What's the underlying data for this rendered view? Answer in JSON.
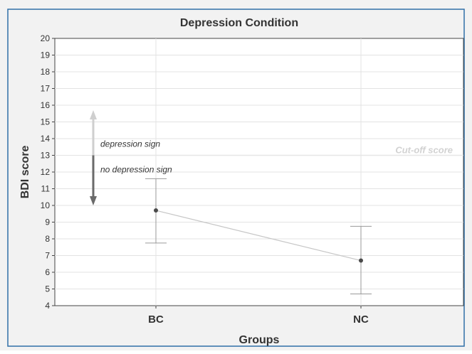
{
  "chart_data": {
    "type": "line",
    "title": "Depression Condition",
    "xlabel": "Groups",
    "ylabel": "BDI score",
    "ylim": [
      4,
      20
    ],
    "yticks": [
      4,
      5,
      6,
      7,
      8,
      9,
      10,
      11,
      12,
      13,
      14,
      15,
      16,
      17,
      18,
      19,
      20
    ],
    "categories": [
      "BC",
      "NC"
    ],
    "series": [
      {
        "values": [
          9.7,
          6.7
        ],
        "error_low": [
          7.75,
          4.7
        ],
        "error_high": [
          11.6,
          8.75
        ]
      }
    ],
    "grid": true,
    "reference_line": {
      "value": 13,
      "label": "Cut-off score"
    },
    "annotations": {
      "arrow_range": [
        10,
        15.7
      ],
      "above_label": "depression sign",
      "below_label": "no depression sign"
    }
  },
  "colors": {
    "background_outer": "#f2f2f2",
    "plot_background": "#ffffff",
    "border": "#2f6fa8",
    "gridline": "#e3e3e3",
    "series_line": "#c6c6c6",
    "errorbar": "#9a9a9a",
    "point": "#4a4a4a",
    "cutoff_line": "#e6e6e6",
    "cutoff_text": "#d2d2d2",
    "arrow_up": "#cfcfcf",
    "arrow_down": "#6a6a6a",
    "text": "#333333"
  }
}
